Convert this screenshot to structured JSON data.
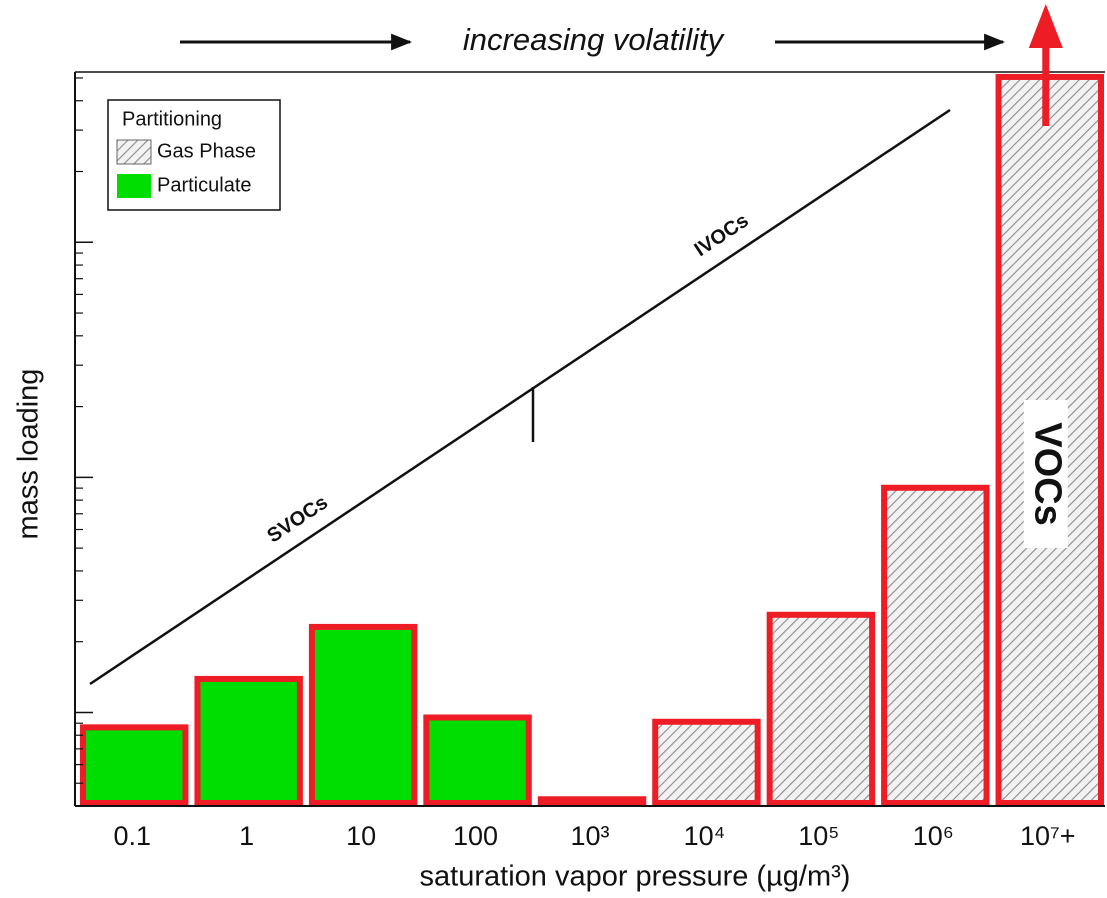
{
  "chart_data": {
    "type": "bar",
    "log_scale": true,
    "categories": [
      "0.1",
      "1",
      "10",
      "100",
      "10³",
      "10⁴",
      "10⁵",
      "10⁶",
      "10⁷+"
    ],
    "series": [
      {
        "name": "Particulate",
        "color": "#00dd00",
        "values": [
          0.089,
          0.143,
          0.238,
          0.098,
          null,
          null,
          null,
          null,
          null
        ]
      },
      {
        "name": "Gas Phase",
        "color": "#8c8c8c",
        "hatch": true,
        "values": [
          null,
          null,
          null,
          null,
          0.044,
          0.094,
          0.268,
          0.93,
          52
        ]
      }
    ],
    "edgecolor": "#ee1c25",
    "legend_title": "Partitioning",
    "legend": "upper left",
    "ylim": [
      0.04,
      53
    ],
    "yticks": [
      0.1,
      1,
      10
    ],
    "minor_yticks": [
      0.05,
      0.06,
      0.07,
      0.08,
      0.09,
      0.2,
      0.3,
      0.4,
      0.5,
      0.6,
      0.7,
      0.8,
      0.9,
      2,
      3,
      4,
      5,
      6,
      7,
      8,
      9,
      20,
      30,
      40,
      50
    ],
    "xlabel": "saturation vapor pressure (µg/m³)",
    "ylabel": "mass loading",
    "annotations": {
      "top": "increasing volatility",
      "svoc": "SVOCs",
      "ivoc": "IVOCs",
      "voc": "VOCs"
    }
  }
}
